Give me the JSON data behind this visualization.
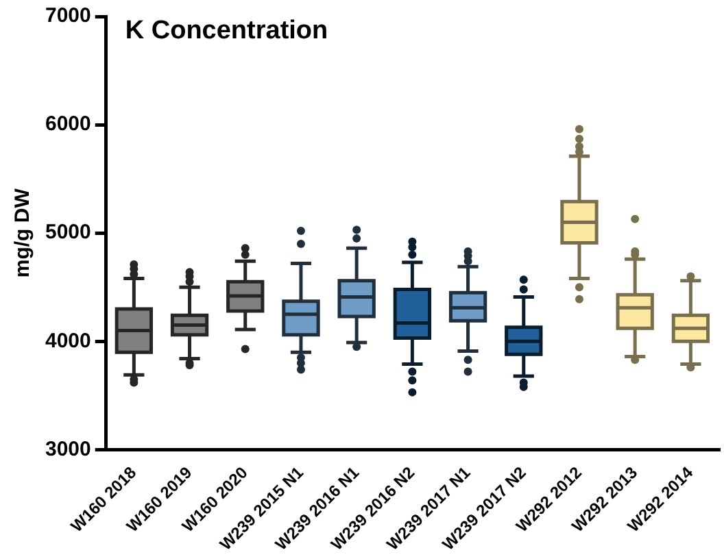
{
  "chart_data": {
    "type": "box",
    "title": "K Concentration",
    "ylabel": "mg/g DW",
    "categories": [
      "W160 2018",
      "W160 2019",
      "W160 2020",
      "W239 2015 N1",
      "W239 2016 N1",
      "W239 2016 N2",
      "W239 2017 N1",
      "W239 2017 N2",
      "W292 2012",
      "W292 2013",
      "W292 2014"
    ],
    "colors": [
      "#808080",
      "#808080",
      "#808080",
      "#6f9dc8",
      "#6f9dc8",
      "#21609a",
      "#6f9dc8",
      "#21609a",
      "#fde8a2",
      "#fde8a2",
      "#fde8a2"
    ],
    "boxes": [
      {
        "low": 3690,
        "q1": 3900,
        "median": 4100,
        "q3": 4300,
        "high": 4580,
        "outliers": [
          4620,
          4670,
          4710,
          3650,
          3620
        ]
      },
      {
        "low": 3840,
        "q1": 4060,
        "median": 4150,
        "q3": 4240,
        "high": 4500,
        "outliers": [
          4550,
          4600,
          4640,
          3800,
          3780
        ]
      },
      {
        "low": 4110,
        "q1": 4280,
        "median": 4420,
        "q3": 4550,
        "high": 4740,
        "outliers": [
          4800,
          4860,
          3930
        ]
      },
      {
        "low": 3900,
        "q1": 4060,
        "median": 4250,
        "q3": 4370,
        "high": 4720,
        "outliers": [
          4900,
          5020,
          3850,
          3800,
          3740
        ]
      },
      {
        "low": 3990,
        "q1": 4230,
        "median": 4410,
        "q3": 4560,
        "high": 4860,
        "outliers": [
          4950,
          5030,
          3950
        ]
      },
      {
        "low": 3790,
        "q1": 4030,
        "median": 4170,
        "q3": 4480,
        "high": 4730,
        "outliers": [
          4800,
          4870,
          4920,
          3720,
          3640,
          3530
        ]
      },
      {
        "low": 3910,
        "q1": 4190,
        "median": 4310,
        "q3": 4450,
        "high": 4690,
        "outliers": [
          4740,
          4790,
          4830,
          3830,
          3720
        ]
      },
      {
        "low": 3680,
        "q1": 3880,
        "median": 4000,
        "q3": 4130,
        "high": 4410,
        "outliers": [
          4480,
          4570,
          3620,
          3580
        ]
      },
      {
        "low": 4580,
        "q1": 4910,
        "median": 5100,
        "q3": 5290,
        "high": 5710,
        "outliers": [
          5750,
          5800,
          5870,
          5960,
          4500,
          4390
        ]
      },
      {
        "low": 3860,
        "q1": 4120,
        "median": 4310,
        "q3": 4430,
        "high": 4760,
        "outliers": [
          4800,
          4830,
          5130,
          3830
        ]
      },
      {
        "low": 3790,
        "q1": 4000,
        "median": 4120,
        "q3": 4240,
        "high": 4560,
        "outliers": [
          4600,
          3760
        ]
      }
    ],
    "ylim": [
      3000,
      7000
    ],
    "yticks": [
      3000,
      4000,
      5000,
      6000,
      7000
    ],
    "grid": false,
    "legend": false
  }
}
